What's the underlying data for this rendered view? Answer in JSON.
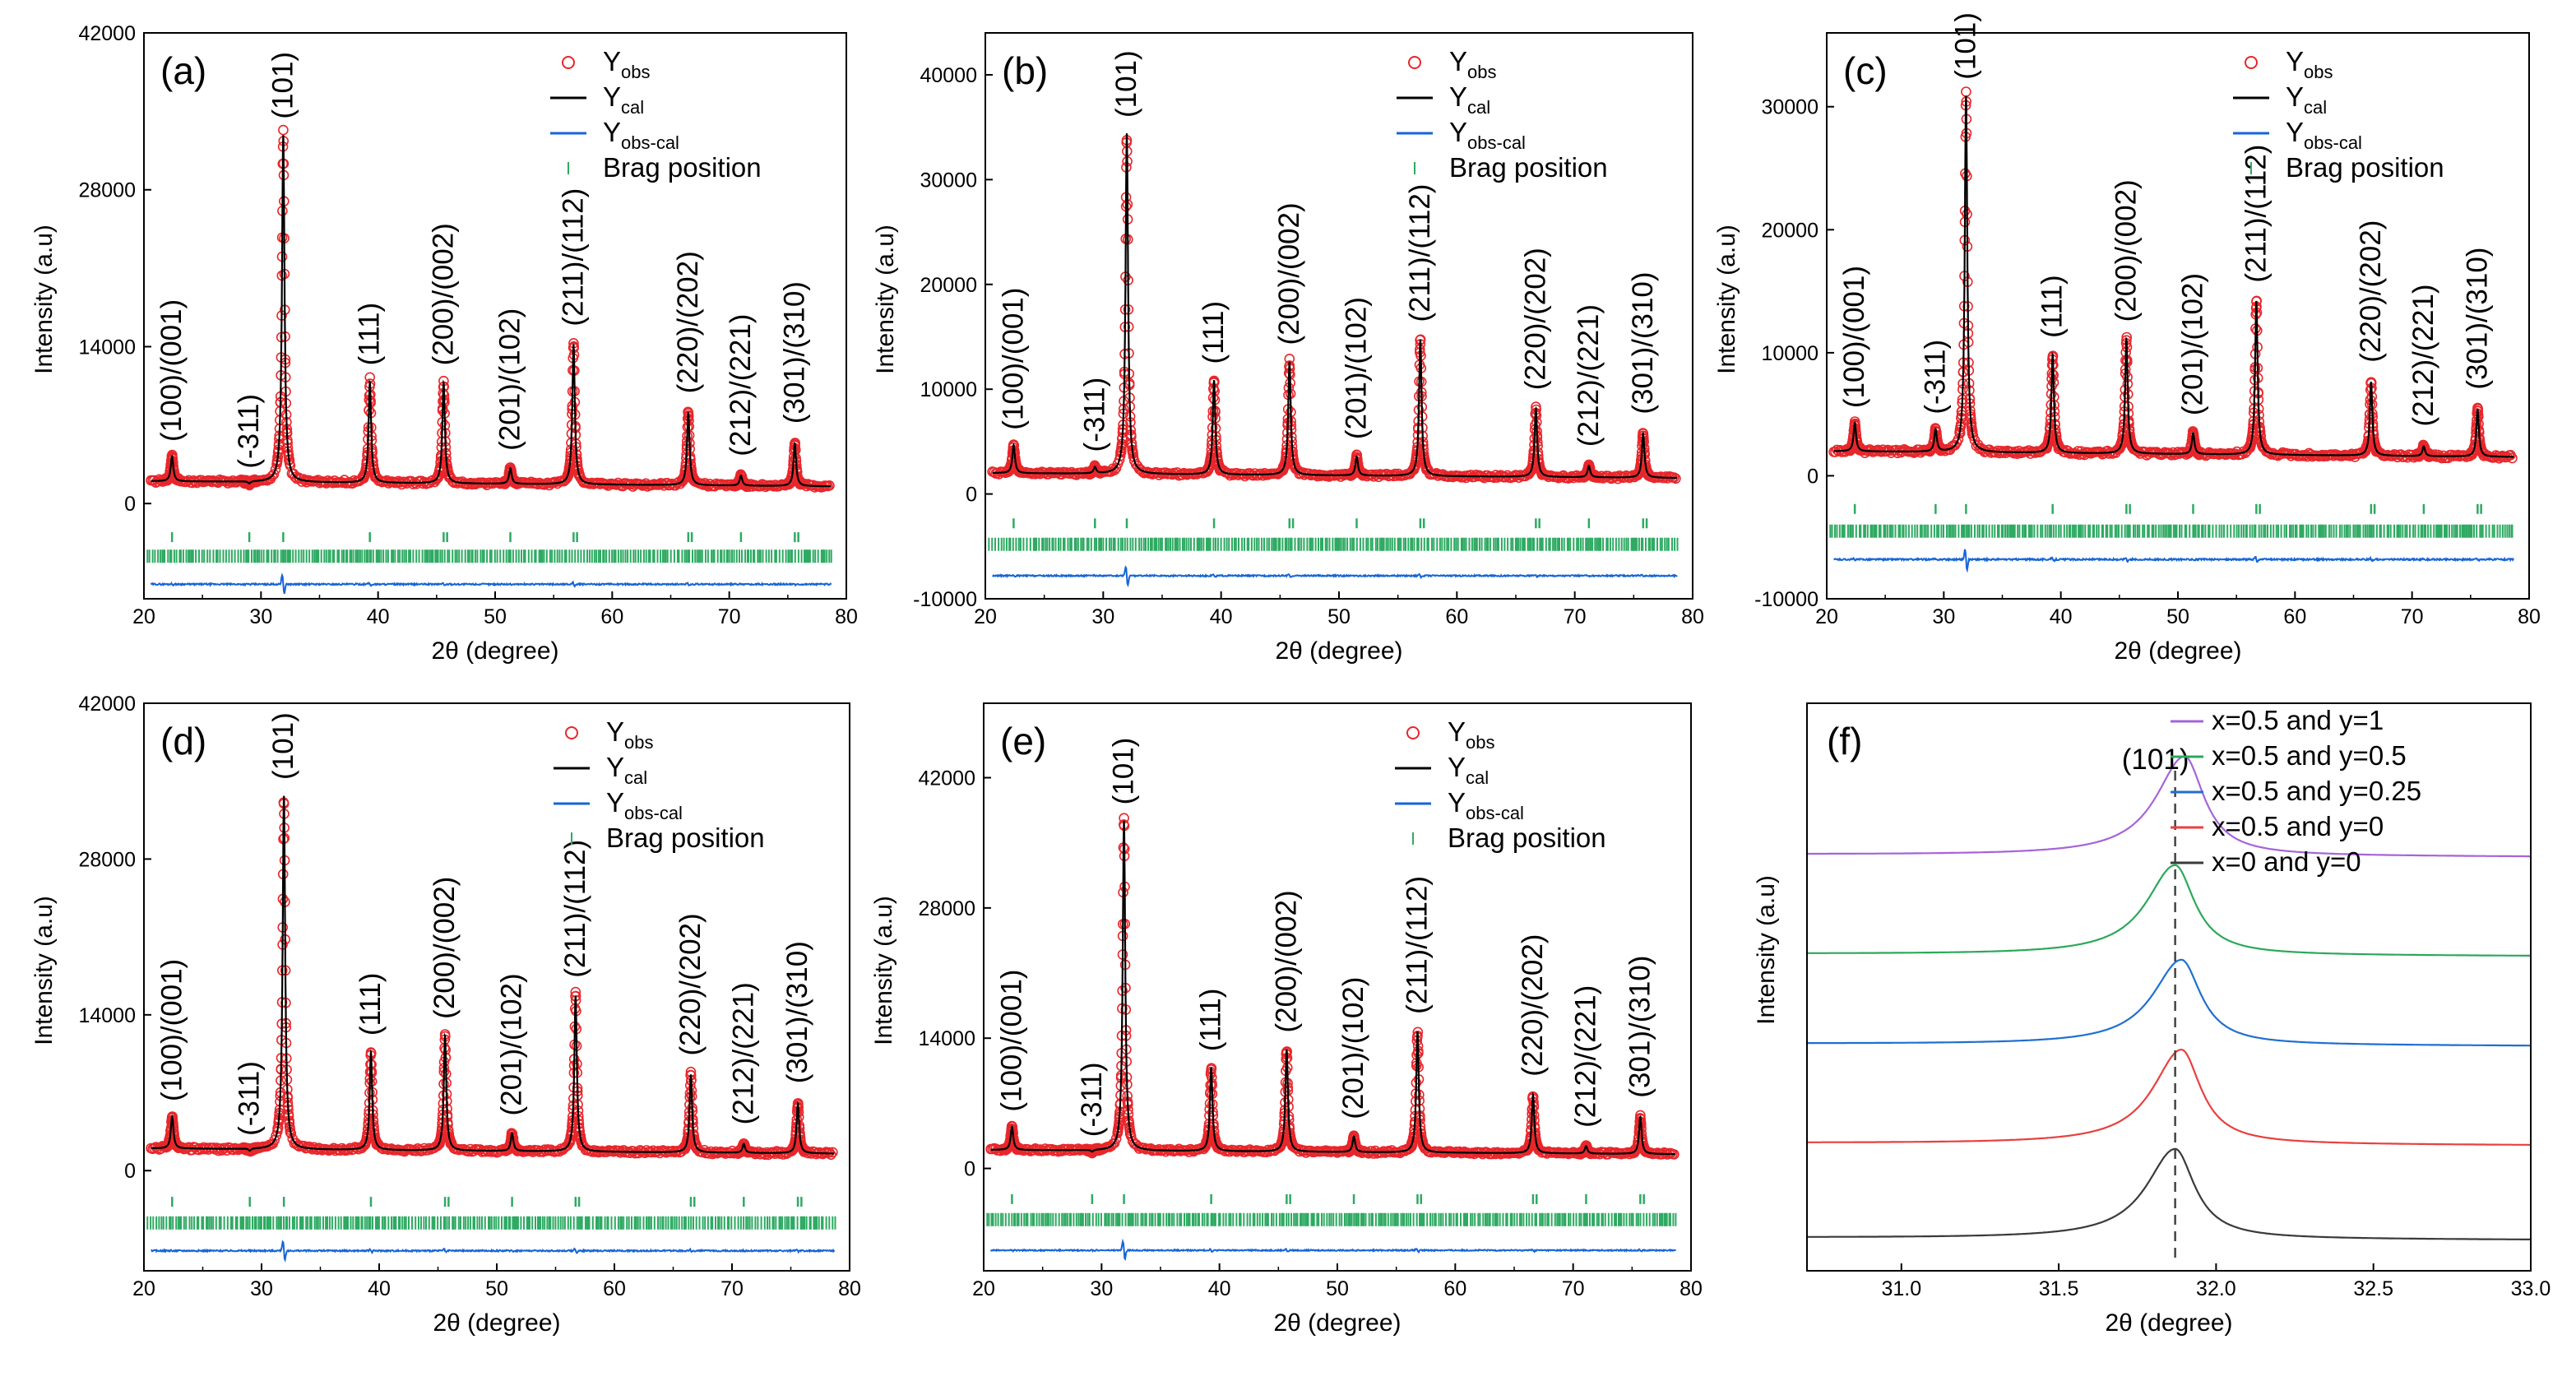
{
  "chart_data": [
    {
      "type": "line",
      "panel_label": "(a)",
      "xlabel": "2θ (degree)",
      "ylabel": "Intensity (a.u)",
      "xlim": [
        20,
        80
      ],
      "ylim": [
        -8500,
        42000
      ],
      "xticks": [
        20,
        30,
        40,
        50,
        60,
        70,
        80
      ],
      "yticks": [
        0,
        14000,
        28000,
        42000
      ],
      "background": 2000,
      "peaks": [
        {
          "two_theta": 22.4,
          "intensity": 4200,
          "label": "(100)/(001)"
        },
        {
          "two_theta": 29.0,
          "intensity": 1800,
          "label": "(-311)"
        },
        {
          "two_theta": 31.9,
          "intensity": 33000,
          "label": "(101)"
        },
        {
          "two_theta": 39.3,
          "intensity": 11000,
          "label": "(111)"
        },
        {
          "two_theta": 45.6,
          "intensity": 11000,
          "label": "(200)/(002)"
        },
        {
          "two_theta": 51.3,
          "intensity": 3400,
          "label": "(201)/(102)"
        },
        {
          "two_theta": 56.7,
          "intensity": 14500,
          "label": "(211)/(112)"
        },
        {
          "two_theta": 66.5,
          "intensity": 8500,
          "label": "(220)/(202)"
        },
        {
          "two_theta": 71.0,
          "intensity": 2900,
          "label": "(212)/(221)"
        },
        {
          "two_theta": 75.6,
          "intensity": 5800,
          "label": "(301)/(310)"
        }
      ],
      "bragg_level": -3000,
      "hkl_level": -4700,
      "diff_level": -7200,
      "legend": [
        {
          "base": "Y",
          "sub": "obs",
          "color": "#e8262b",
          "kind": "circle"
        },
        {
          "base": "Y",
          "sub": "cal",
          "color": "#000000",
          "kind": "line"
        },
        {
          "base": "Y",
          "sub": "obs-cal",
          "color": "#1565d8",
          "kind": "line"
        },
        {
          "base": "Brag position",
          "sub": "",
          "color": "#2eaa62",
          "kind": "tick"
        }
      ]
    },
    {
      "type": "line",
      "panel_label": "(b)",
      "xlabel": "2θ (degree)",
      "ylabel": "Intensity (a.u)",
      "xlim": [
        20,
        80
      ],
      "ylim": [
        -10000,
        44000
      ],
      "xticks": [
        20,
        30,
        40,
        50,
        60,
        70,
        80
      ],
      "yticks": [
        -10000,
        0,
        10000,
        20000,
        30000,
        40000
      ],
      "background": 2000,
      "peaks": [
        {
          "two_theta": 22.4,
          "intensity": 4700,
          "label": "(100)/(001)"
        },
        {
          "two_theta": 29.3,
          "intensity": 2600,
          "label": "(-311)"
        },
        {
          "two_theta": 32.0,
          "intensity": 34500,
          "label": "(101)"
        },
        {
          "two_theta": 39.4,
          "intensity": 11000,
          "label": "(111)"
        },
        {
          "two_theta": 45.8,
          "intensity": 12800,
          "label": "(200)/(002)"
        },
        {
          "two_theta": 51.5,
          "intensity": 3800,
          "label": "(201)/(102)"
        },
        {
          "two_theta": 56.9,
          "intensity": 15000,
          "label": "(211)/(112)"
        },
        {
          "two_theta": 66.7,
          "intensity": 8500,
          "label": "(220)/(202)"
        },
        {
          "two_theta": 71.2,
          "intensity": 3100,
          "label": "(212)/(221)"
        },
        {
          "two_theta": 75.8,
          "intensity": 6200,
          "label": "(301)/(310)"
        }
      ],
      "bragg_level": -2800,
      "hkl_level": -4800,
      "diff_level": -7800,
      "legend": [
        {
          "base": "Y",
          "sub": "obs",
          "color": "#e8262b",
          "kind": "circle"
        },
        {
          "base": "Y",
          "sub": "cal",
          "color": "#000000",
          "kind": "line"
        },
        {
          "base": "Y",
          "sub": "obs-cal",
          "color": "#1565d8",
          "kind": "line"
        },
        {
          "base": "Brag position",
          "sub": "",
          "color": "#2eaa62",
          "kind": "tick"
        }
      ]
    },
    {
      "type": "line",
      "panel_label": "(c)",
      "xlabel": "2θ (degree)",
      "ylabel": "Intensity (a.u)",
      "xlim": [
        20,
        80
      ],
      "ylim": [
        -10000,
        36000
      ],
      "xticks": [
        20,
        30,
        40,
        50,
        60,
        70,
        80
      ],
      "yticks": [
        -10000,
        0,
        10000,
        20000,
        30000
      ],
      "background": 2000,
      "peaks": [
        {
          "two_theta": 22.4,
          "intensity": 4300,
          "label": "(100)/(001)"
        },
        {
          "two_theta": 29.3,
          "intensity": 3800,
          "label": "(-311)"
        },
        {
          "two_theta": 31.9,
          "intensity": 31000,
          "label": "(101)"
        },
        {
          "two_theta": 39.3,
          "intensity": 10000,
          "label": "(111)"
        },
        {
          "two_theta": 45.6,
          "intensity": 11300,
          "label": "(200)/(002)"
        },
        {
          "two_theta": 51.3,
          "intensity": 3700,
          "label": "(201)/(102)"
        },
        {
          "two_theta": 56.7,
          "intensity": 14500,
          "label": "(211)/(112)"
        },
        {
          "two_theta": 66.5,
          "intensity": 8000,
          "label": "(220)/(202)"
        },
        {
          "two_theta": 71.0,
          "intensity": 2800,
          "label": "(212)/(221)"
        },
        {
          "two_theta": 75.6,
          "intensity": 5800,
          "label": "(301)/(310)"
        }
      ],
      "bragg_level": -2700,
      "hkl_level": -4500,
      "diff_level": -6800,
      "legend": [
        {
          "base": "Y",
          "sub": "obs",
          "color": "#e8262b",
          "kind": "circle"
        },
        {
          "base": "Y",
          "sub": "cal",
          "color": "#000000",
          "kind": "line"
        },
        {
          "base": "Y",
          "sub": "obs-cal",
          "color": "#1565d8",
          "kind": "line"
        },
        {
          "base": "Brag position",
          "sub": "",
          "color": "#2eaa62",
          "kind": "tick"
        }
      ]
    },
    {
      "type": "line",
      "panel_label": "(d)",
      "xlabel": "2θ (degree)",
      "ylabel": "Intensity (a.u)",
      "xlim": [
        20,
        80
      ],
      "ylim": [
        -9000,
        42000
      ],
      "xticks": [
        20,
        30,
        40,
        50,
        60,
        70,
        80
      ],
      "yticks": [
        0,
        14000,
        28000,
        42000
      ],
      "background": 2000,
      "peaks": [
        {
          "two_theta": 22.4,
          "intensity": 4900,
          "label": "(100)/(001)"
        },
        {
          "two_theta": 29.0,
          "intensity": 1800,
          "label": "(-311)"
        },
        {
          "two_theta": 31.9,
          "intensity": 33800,
          "label": "(101)"
        },
        {
          "two_theta": 39.3,
          "intensity": 10800,
          "label": "(111)"
        },
        {
          "two_theta": 45.6,
          "intensity": 12300,
          "label": "(200)/(002)"
        },
        {
          "two_theta": 51.3,
          "intensity": 3600,
          "label": "(201)/(102)"
        },
        {
          "two_theta": 56.7,
          "intensity": 16000,
          "label": "(211)/(112)"
        },
        {
          "two_theta": 66.5,
          "intensity": 9000,
          "label": "(220)/(202)"
        },
        {
          "two_theta": 71.0,
          "intensity": 2800,
          "label": "(212)/(221)"
        },
        {
          "two_theta": 75.6,
          "intensity": 6500,
          "label": "(301)/(310)"
        }
      ],
      "bragg_level": -2800,
      "hkl_level": -4700,
      "diff_level": -7200,
      "legend": [
        {
          "base": "Y",
          "sub": "obs",
          "color": "#e8262b",
          "kind": "circle"
        },
        {
          "base": "Y",
          "sub": "cal",
          "color": "#000000",
          "kind": "line"
        },
        {
          "base": "Y",
          "sub": "obs-cal",
          "color": "#1565d8",
          "kind": "line"
        },
        {
          "base": "Brag position",
          "sub": "",
          "color": "#2eaa62",
          "kind": "tick"
        }
      ]
    },
    {
      "type": "line",
      "panel_label": "(e)",
      "xlabel": "2θ (degree)",
      "ylabel": "Intensity (a.u)",
      "xlim": [
        20,
        80
      ],
      "ylim": [
        -11000,
        50000
      ],
      "xticks": [
        20,
        30,
        40,
        50,
        60,
        70,
        80
      ],
      "yticks": [
        0,
        14000,
        28000,
        42000
      ],
      "background": 2000,
      "peaks": [
        {
          "two_theta": 22.4,
          "intensity": 4500,
          "label": "(100)/(001)"
        },
        {
          "two_theta": 29.2,
          "intensity": 1800,
          "label": "(-311)"
        },
        {
          "two_theta": 31.9,
          "intensity": 37500,
          "label": "(101)"
        },
        {
          "two_theta": 39.3,
          "intensity": 11000,
          "label": "(111)"
        },
        {
          "two_theta": 45.7,
          "intensity": 13000,
          "label": "(200)/(002)"
        },
        {
          "two_theta": 51.4,
          "intensity": 3700,
          "label": "(201)/(102)"
        },
        {
          "two_theta": 56.8,
          "intensity": 15000,
          "label": "(211)/(112)"
        },
        {
          "two_theta": 66.6,
          "intensity": 8300,
          "label": "(220)/(202)"
        },
        {
          "two_theta": 71.1,
          "intensity": 2800,
          "label": "(212)/(221)"
        },
        {
          "two_theta": 75.7,
          "intensity": 6000,
          "label": "(301)/(310)"
        }
      ],
      "bragg_level": -3300,
      "hkl_level": -5500,
      "diff_level": -8800,
      "legend": [
        {
          "base": "Y",
          "sub": "obs",
          "color": "#e8262b",
          "kind": "circle"
        },
        {
          "base": "Y",
          "sub": "cal",
          "color": "#000000",
          "kind": "line"
        },
        {
          "base": "Y",
          "sub": "obs-cal",
          "color": "#1565d8",
          "kind": "line"
        },
        {
          "base": "Brag position",
          "sub": "",
          "color": "#2eaa62",
          "kind": "tick"
        }
      ]
    },
    {
      "type": "line",
      "panel_label": "(f)",
      "xlabel": "2θ (degree)",
      "ylabel": "Intensity (a.u)",
      "xlim": [
        30.7,
        33.0
      ],
      "ylim": [
        0,
        6
      ],
      "xticks": [
        31.0,
        31.5,
        32.0,
        32.5,
        33.0
      ],
      "x_tick_labels": [
        "31.0",
        "31.5",
        "32.0",
        "32.5",
        "33.0"
      ],
      "peak_label": "(101)",
      "reference_line_x": 31.87,
      "series": [
        {
          "name": "x=0 and y=0",
          "color": "#3a3a3a",
          "center": 31.87,
          "offset": 0.0,
          "height": 0.95
        },
        {
          "name": "x=0.5 and y=0",
          "color": "#e8403f",
          "center": 31.89,
          "offset": 1.0,
          "height": 1.0
        },
        {
          "name": "x=0.5 and y=0.25",
          "color": "#1f6fd1",
          "center": 31.89,
          "offset": 2.05,
          "height": 0.9
        },
        {
          "name": "x=0.5 and y=0.5",
          "color": "#2ca85a",
          "center": 31.87,
          "offset": 3.0,
          "height": 0.95
        },
        {
          "name": "x=0.5 and y=1",
          "color": "#a564d8",
          "center": 31.9,
          "offset": 4.05,
          "height": 1.05
        }
      ],
      "legend_order": [
        4,
        3,
        2,
        1,
        0
      ]
    }
  ]
}
